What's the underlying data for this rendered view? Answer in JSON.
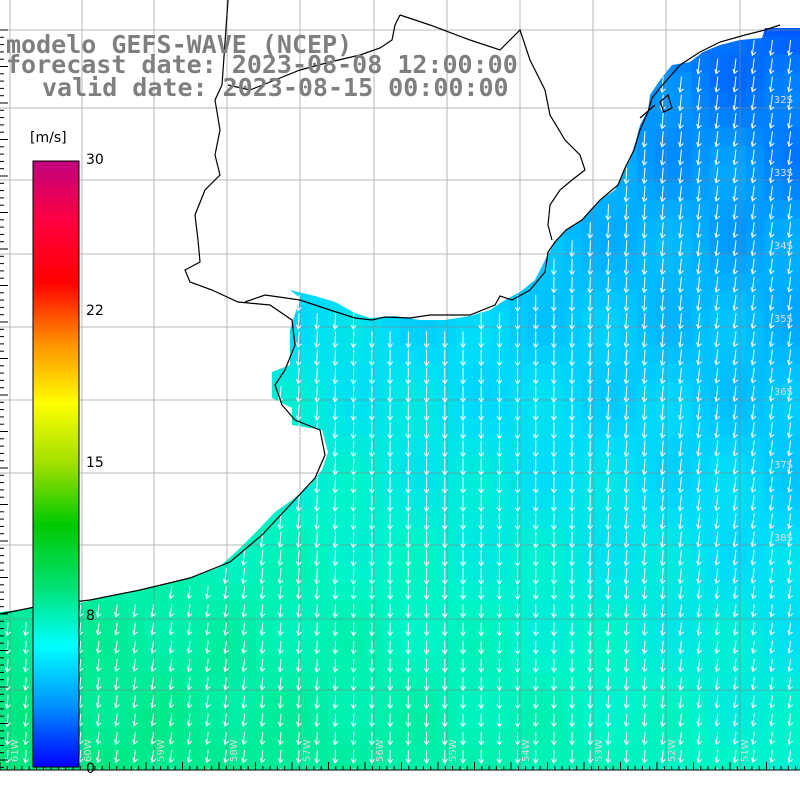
{
  "title": {
    "model": "modelo GEFS-WAVE (NCEP)",
    "forecast": "forecast date: 2023-08-08 12:00:00",
    "valid": "valid date: 2023-08-15 00:00:00"
  },
  "colorbar": {
    "unit": "[m/s]",
    "ticks": [
      "30",
      "22",
      "15",
      "8",
      "0"
    ],
    "colors": [
      "#0000ff",
      "#0090ff",
      "#00ffff",
      "#00e070",
      "#00c800",
      "#a0e000",
      "#ffff00",
      "#ff9000",
      "#ff0000",
      "#ff0040",
      "#c0007e"
    ]
  },
  "map_labels": {
    "lat": [
      "32S",
      "33S",
      "34S",
      "35S",
      "36S",
      "37S",
      "38S"
    ],
    "lon": [
      "61W",
      "60W",
      "59W",
      "58W",
      "57W",
      "56W",
      "55W",
      "54W",
      "53W",
      "52W",
      "51W"
    ]
  }
}
